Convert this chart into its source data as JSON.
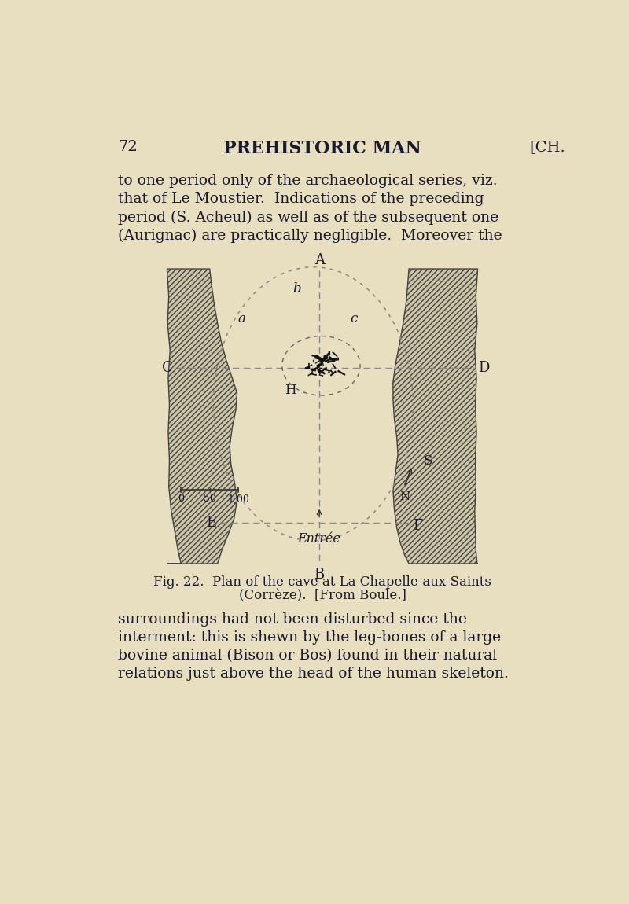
{
  "bg_color": "#e8dfc0",
  "header_page": "72",
  "header_title": "PREHISTORIC MAN",
  "header_ch": "[CH.",
  "para1_lines": [
    "to one period only of the archaeological series, viz.",
    "that of Le Moustier.  Indications of the preceding",
    "period (S. Acheul) as well as of the subsequent one",
    "(Aurignac) are practically negligible.  Moreover the"
  ],
  "fig_caption_line1": "Fig. 22.  Plan of the cave at La Chapelle-aux-Saints",
  "fig_caption_line2": "(Corrèze).  [From Boule.]",
  "para2_lines": [
    "surroundings had not been disturbed since the",
    "interment: this is shewn by the leg-bones of a large",
    "bovine animal (Bison or Bos) found in their natural",
    "relations just above the head of the human skeleton."
  ],
  "text_color": "#1a1a2e",
  "label_color": "#1a1a2e",
  "hatch_color": "#555555",
  "wall_face_color": "#cdc5a5",
  "dotted_line_color": "#888888",
  "skeleton_color": "#111111"
}
